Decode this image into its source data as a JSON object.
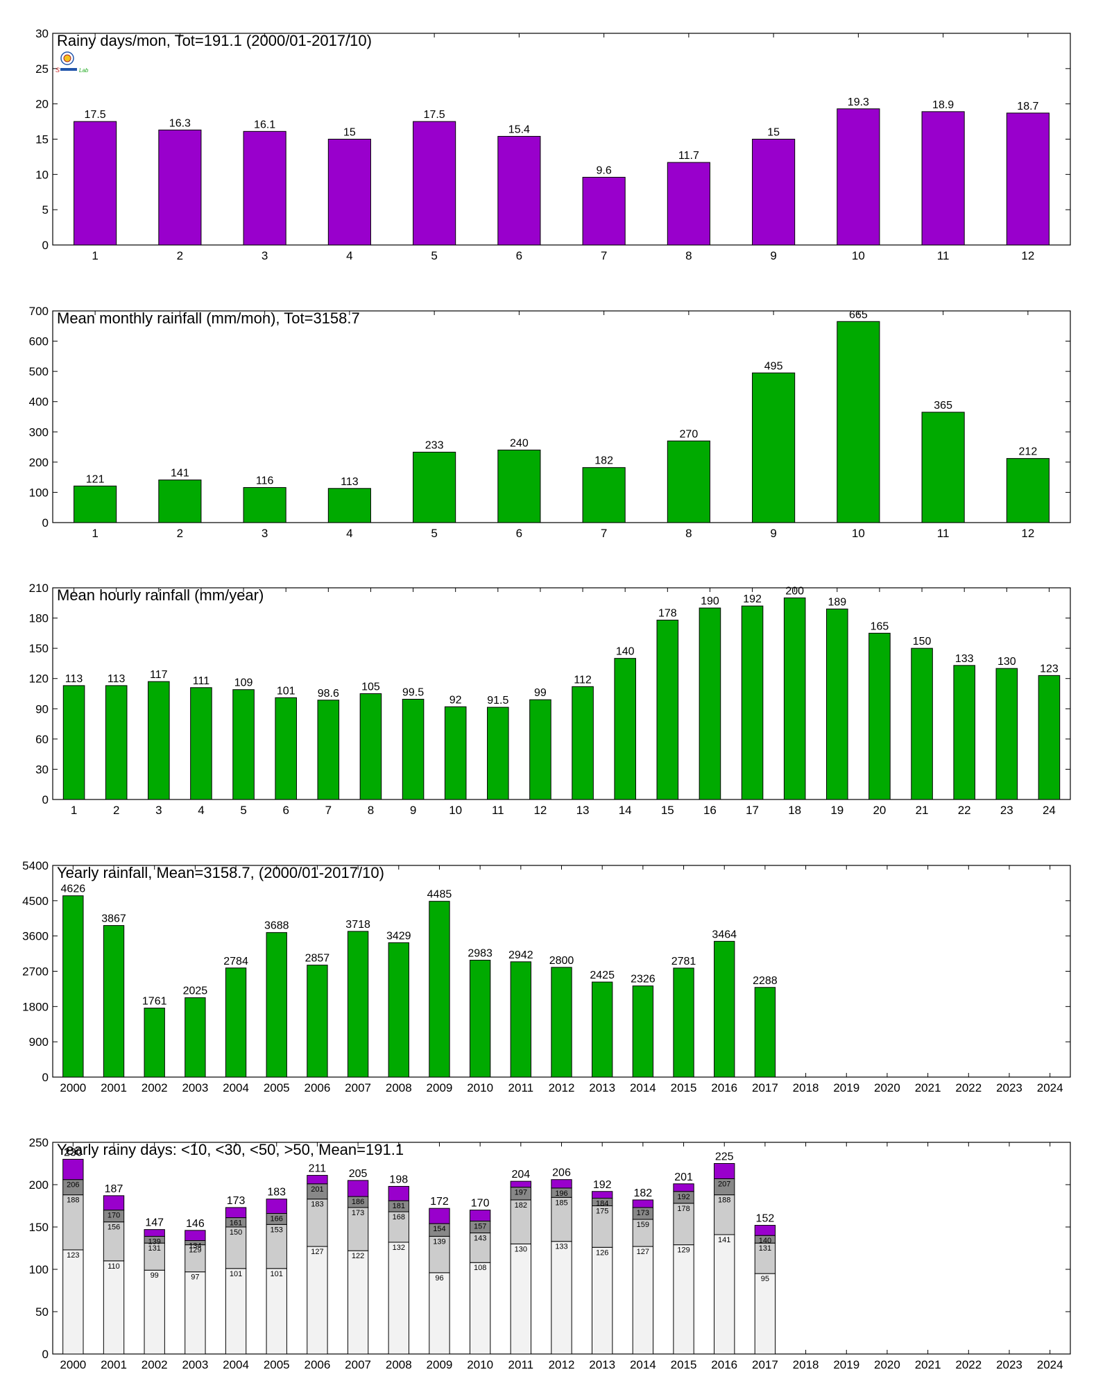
{
  "chart_data": [
    {
      "type": "bar",
      "title": "Rainy days/mon, Tot=191.1 (2000/01-2017/10)",
      "categories": [
        "1",
        "2",
        "3",
        "4",
        "5",
        "6",
        "7",
        "8",
        "9",
        "10",
        "11",
        "12"
      ],
      "values": [
        17.5,
        16.3,
        16.1,
        15,
        17.5,
        15.4,
        9.6,
        11.7,
        15,
        19.3,
        18.9,
        18.7
      ],
      "labels": [
        "17.5",
        "16.3",
        "16.1",
        "15",
        "17.5",
        "15.4",
        "9.6",
        "11.7",
        "15",
        "19.3",
        "18.9",
        "18.7"
      ],
      "ylim": [
        0,
        30
      ],
      "yticks": [
        "0",
        "5",
        "10",
        "15",
        "20",
        "25",
        "30"
      ],
      "color": "#9900cc"
    },
    {
      "type": "bar",
      "title": "Mean monthly rainfall (mm/mon), Tot=3158.7",
      "categories": [
        "1",
        "2",
        "3",
        "4",
        "5",
        "6",
        "7",
        "8",
        "9",
        "10",
        "11",
        "12"
      ],
      "values": [
        121,
        141,
        116,
        113,
        233,
        240,
        182,
        270,
        495,
        665,
        365,
        212
      ],
      "labels": [
        "121",
        "141",
        "116",
        "113",
        "233",
        "240",
        "182",
        "270",
        "495",
        "665",
        "365",
        "212"
      ],
      "ylim": [
        0,
        700
      ],
      "yticks": [
        "0",
        "100",
        "200",
        "300",
        "400",
        "500",
        "600",
        "700"
      ],
      "color": "#00aa00"
    },
    {
      "type": "bar",
      "title": "Mean hourly rainfall (mm/year)",
      "categories": [
        "1",
        "2",
        "3",
        "4",
        "5",
        "6",
        "7",
        "8",
        "9",
        "10",
        "11",
        "12",
        "13",
        "14",
        "15",
        "16",
        "17",
        "18",
        "19",
        "20",
        "21",
        "22",
        "23",
        "24"
      ],
      "values": [
        113,
        113,
        117,
        111,
        109,
        101,
        98.6,
        105,
        99.5,
        92,
        91.5,
        99,
        112,
        140,
        178,
        190,
        192,
        200,
        189,
        165,
        150,
        133,
        130,
        123
      ],
      "labels": [
        "113",
        "113",
        "117",
        "111",
        "109",
        "101",
        "98.6",
        "105",
        "99.5",
        "92",
        "91.5",
        "99",
        "112",
        "140",
        "178",
        "190",
        "192",
        "200",
        "189",
        "165",
        "150",
        "133",
        "130",
        "123"
      ],
      "ylim": [
        0,
        210
      ],
      "yticks": [
        "0",
        "30",
        "60",
        "90",
        "120",
        "150",
        "180",
        "210"
      ],
      "color": "#00aa00"
    },
    {
      "type": "bar",
      "title": "Yearly rainfall, Mean=3158.7, (2000/01-2017/10)",
      "categories": [
        "2000",
        "2001",
        "2002",
        "2003",
        "2004",
        "2005",
        "2006",
        "2007",
        "2008",
        "2009",
        "2010",
        "2011",
        "2012",
        "2013",
        "2014",
        "2015",
        "2016",
        "2017",
        "2018",
        "2019",
        "2020",
        "2021",
        "2022",
        "2023",
        "2024"
      ],
      "values": [
        4626,
        3867,
        1761,
        2025,
        2784,
        3688,
        2857,
        3718,
        3429,
        4485,
        2983,
        2942,
        2800,
        2425,
        2326,
        2781,
        3464,
        2288,
        null,
        null,
        null,
        null,
        null,
        null,
        null
      ],
      "labels": [
        "4626",
        "3867",
        "1761",
        "2025",
        "2784",
        "3688",
        "2857",
        "3718",
        "3429",
        "4485",
        "2983",
        "2942",
        "2800",
        "2425",
        "2326",
        "2781",
        "3464",
        "2288",
        "",
        "",
        "",
        "",
        "",
        "",
        ""
      ],
      "ylim": [
        0,
        5400
      ],
      "yticks": [
        "0",
        "900",
        "1800",
        "2700",
        "3600",
        "4500",
        "5400"
      ],
      "color": "#00aa00"
    },
    {
      "type": "bar",
      "stacked": true,
      "title": "Yearly rainy days: <10, <30, <50, >50, Mean=191.1",
      "categories": [
        "2000",
        "2001",
        "2002",
        "2003",
        "2004",
        "2005",
        "2006",
        "2007",
        "2008",
        "2009",
        "2010",
        "2011",
        "2012",
        "2013",
        "2014",
        "2015",
        "2016",
        "2017",
        "2018",
        "2019",
        "2020",
        "2021",
        "2022",
        "2023",
        "2024"
      ],
      "cumulative_levels": {
        "lt10": [
          123,
          110,
          99,
          97,
          101,
          101,
          127,
          122,
          132,
          96,
          108,
          130,
          133,
          126,
          127,
          129,
          141,
          95,
          null,
          null,
          null,
          null,
          null,
          null,
          null
        ],
        "lt30": [
          188,
          156,
          131,
          129,
          150,
          153,
          183,
          173,
          168,
          139,
          143,
          182,
          185,
          175,
          159,
          178,
          188,
          131,
          null,
          null,
          null,
          null,
          null,
          null,
          null
        ],
        "lt50": [
          206,
          170,
          139,
          134,
          161,
          166,
          201,
          186,
          181,
          154,
          157,
          197,
          196,
          184,
          173,
          192,
          207,
          140,
          null,
          null,
          null,
          null,
          null,
          null,
          null
        ],
        "total": [
          230,
          187,
          147,
          146,
          173,
          183,
          211,
          205,
          198,
          172,
          170,
          204,
          206,
          192,
          182,
          201,
          225,
          152,
          null,
          null,
          null,
          null,
          null,
          null,
          null
        ]
      },
      "level_labels": {
        "lt10": [
          "123",
          "110",
          "99",
          "97",
          "101",
          "101",
          "127",
          "122",
          "132",
          "96",
          "108",
          "130",
          "133",
          "126",
          "127",
          "129",
          "141",
          "95"
        ],
        "lt30": [
          "188",
          "156",
          "131",
          "129",
          "150",
          "153",
          "183",
          "173",
          "168",
          "139",
          "143",
          "182",
          "185",
          "175",
          "159",
          "178",
          "188",
          "131"
        ],
        "lt50": [
          "206",
          "170",
          "139",
          "134",
          "161",
          "166",
          "201",
          "186",
          "181",
          "154",
          "157",
          "197",
          "196",
          "184",
          "173",
          "192",
          "207",
          "140"
        ],
        "total": [
          "230",
          "187",
          "147",
          "146",
          "173",
          "183",
          "211",
          "205",
          "198",
          "172",
          "170",
          "204",
          "206",
          "192",
          "182",
          "201",
          "225",
          "152"
        ]
      },
      "ylim": [
        0,
        250
      ],
      "yticks": [
        "0",
        "50",
        "100",
        "150",
        "200",
        "250"
      ],
      "colors": {
        "lt10": "#f2f2f2",
        "lt30": "#cccccc",
        "lt50": "#888888",
        "gt50": "#9900cc"
      }
    }
  ]
}
